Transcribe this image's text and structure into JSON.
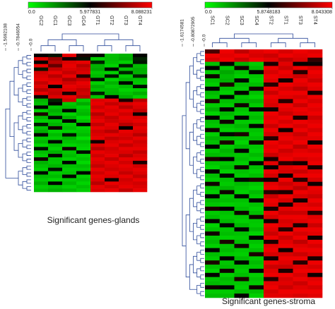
{
  "chart_data": [
    {
      "type": "heatmap",
      "title": "Significant genes-glands",
      "columns": [
        "GC2",
        "GC1",
        "GC3",
        "GC4",
        "GT1",
        "GT2",
        "GT3",
        "GT4"
      ],
      "clim": [
        0,
        8.088231
      ],
      "color_scale": {
        "colors": [
          "#00ff00",
          "#000000",
          "#ff0000"
        ],
        "ticks": [
          {
            "value": 0,
            "label": "0.0"
          },
          5.977831,
          8.088231
        ]
      },
      "dendrogram_ticks": [
        -1.5692108,
        -0.7846054,
        {
          "value": 0,
          "label": "-0.0"
        }
      ],
      "values": [
        [
          6.0,
          5.5,
          7.9,
          6.2,
          5.8,
          1.5,
          1.8,
          5.9
        ],
        [
          7.8,
          7.2,
          6.1,
          5.6,
          1.2,
          1.6,
          2.0,
          5.2
        ],
        [
          5.9,
          7.5,
          7.8,
          7.9,
          5.2,
          1.4,
          1.1,
          5.5
        ],
        [
          7.9,
          6.8,
          7.9,
          7.5,
          1.8,
          1.0,
          5.3,
          1.6
        ],
        [
          5.5,
          7.6,
          7.8,
          7.7,
          2.0,
          5.8,
          1.5,
          1.9
        ],
        [
          7.7,
          7.9,
          7.6,
          7.8,
          1.3,
          1.1,
          5.2,
          1.8
        ],
        [
          7.8,
          7.5,
          7.9,
          6.3,
          1.6,
          5.5,
          1.2,
          5.1
        ],
        [
          7.9,
          7.8,
          7.4,
          7.6,
          5.6,
          1.0,
          1.7,
          1.4
        ],
        [
          7.6,
          7.9,
          7.7,
          7.9,
          1.1,
          1.8,
          5.9,
          1.3
        ],
        [
          7.8,
          6.0,
          7.9,
          7.8,
          1.9,
          1.3,
          1.6,
          5.7
        ],
        [
          7.5,
          7.7,
          7.8,
          7.6,
          1.5,
          1.6,
          1.0,
          1.2
        ],
        [
          7.9,
          7.6,
          6.2,
          7.7,
          5.3,
          1.7,
          1.4,
          1.9
        ],
        [
          6.1,
          7.8,
          7.9,
          7.5,
          1.4,
          6.0,
          1.9,
          1.1
        ],
        [
          1.8,
          5.2,
          7.7,
          1.2,
          7.8,
          7.9,
          6.2,
          7.5
        ],
        [
          1.5,
          6.0,
          1.3,
          2.0,
          7.9,
          7.6,
          7.8,
          7.9
        ],
        [
          5.9,
          1.4,
          1.6,
          1.1,
          7.7,
          7.9,
          7.5,
          7.8
        ],
        [
          1.2,
          1.9,
          5.8,
          1.5,
          7.9,
          7.8,
          7.9,
          7.6
        ],
        [
          6.2,
          1.5,
          1.0,
          1.7,
          7.5,
          7.9,
          7.7,
          6.1
        ],
        [
          1.6,
          5.6,
          1.8,
          0.9,
          7.8,
          7.6,
          7.9,
          7.8
        ],
        [
          1.1,
          1.3,
          6.0,
          1.4,
          7.9,
          7.7,
          7.8,
          7.9
        ],
        [
          5.3,
          1.7,
          1.2,
          5.9,
          7.6,
          7.9,
          7.5,
          7.7
        ],
        [
          1.4,
          6.1,
          1.5,
          1.0,
          7.9,
          7.8,
          6.0,
          7.9
        ],
        [
          1.9,
          1.0,
          1.1,
          1.3,
          7.7,
          7.5,
          7.9,
          7.8
        ],
        [
          6.0,
          1.6,
          5.5,
          1.6,
          7.8,
          7.9,
          7.8,
          7.5
        ],
        [
          1.3,
          1.2,
          1.7,
          0.8,
          7.9,
          7.6,
          7.7,
          7.9
        ],
        [
          1.7,
          5.8,
          1.4,
          1.5,
          6.1,
          7.8,
          7.9,
          7.7
        ],
        [
          1.0,
          1.5,
          1.0,
          1.2,
          7.8,
          7.9,
          7.6,
          7.8
        ],
        [
          5.6,
          1.1,
          6.1,
          1.0,
          7.5,
          7.7,
          7.9,
          7.9
        ],
        [
          1.5,
          1.8,
          1.3,
          5.7,
          7.9,
          7.8,
          7.8,
          7.6
        ],
        [
          1.2,
          6.0,
          1.6,
          1.1,
          7.7,
          7.9,
          7.5,
          7.8
        ],
        [
          6.1,
          1.4,
          1.1,
          1.4,
          7.9,
          7.6,
          7.9,
          7.9
        ],
        [
          1.8,
          1.3,
          5.9,
          0.9,
          7.8,
          7.9,
          7.7,
          6.2
        ],
        [
          1.4,
          1.7,
          1.5,
          1.6,
          7.6,
          7.8,
          7.9,
          7.7
        ],
        [
          1.1,
          5.5,
          1.2,
          1.3,
          7.9,
          7.7,
          7.8,
          7.9
        ],
        [
          5.8,
          1.2,
          1.4,
          5.9,
          7.7,
          7.9,
          7.6,
          7.8
        ],
        [
          1.6,
          1.6,
          6.0,
          1.1,
          7.9,
          7.8,
          7.9,
          7.6
        ],
        [
          1.3,
          1.0,
          1.3,
          1.4,
          7.8,
          6.1,
          7.7,
          7.9
        ],
        [
          1.9,
          5.9,
          1.7,
          1.0,
          7.5,
          7.9,
          7.8,
          7.7
        ],
        [
          1.2,
          1.4,
          1.1,
          1.5,
          7.9,
          7.7,
          7.9,
          7.8
        ],
        [
          1.5,
          1.8,
          1.6,
          1.2,
          7.8,
          7.9,
          7.6,
          7.9
        ]
      ]
    },
    {
      "type": "heatmap",
      "title": "Significant genes-stroma",
      "columns": [
        "SC1",
        "SC2",
        "SC3",
        "SC4",
        "ST2",
        "ST1",
        "ST3",
        "ST4"
      ],
      "clim": [
        0,
        8.043308
      ],
      "color_scale": {
        "colors": [
          "#00ff00",
          "#000000",
          "#ff0000"
        ],
        "ticks": [
          {
            "value": 0,
            "label": "0.0"
          },
          5.8748183,
          8.043308
        ]
      },
      "dendrogram_ticks": [
        -1.6174581,
        -0.80872905,
        {
          "value": 0,
          "label": "-0.0"
        }
      ],
      "values": [
        [
          6.5,
          7.9,
          7.5,
          7.8,
          7.9,
          7.7,
          7.9,
          7.8
        ],
        [
          7.9,
          7.8,
          7.9,
          7.7,
          7.6,
          7.9,
          7.8,
          7.9
        ],
        [
          7.7,
          7.9,
          7.6,
          7.9,
          7.8,
          7.5,
          7.7,
          6.3
        ],
        [
          1.5,
          5.9,
          1.8,
          1.2,
          6.1,
          7.8,
          5.8,
          6.0
        ],
        [
          5.8,
          1.3,
          6.0,
          1.6,
          7.9,
          7.6,
          7.9,
          7.7
        ],
        [
          1.2,
          2.0,
          1.4,
          5.9,
          7.7,
          7.9,
          6.2,
          7.9
        ],
        [
          6.0,
          1.6,
          1.1,
          1.3,
          7.9,
          7.8,
          7.6,
          7.8
        ],
        [
          1.4,
          1.8,
          5.7,
          1.1,
          7.8,
          6.0,
          7.9,
          7.6
        ],
        [
          1.1,
          6.1,
          1.5,
          1.5,
          6.2,
          7.9,
          7.8,
          7.9
        ],
        [
          5.7,
          1.4,
          1.2,
          6.0,
          7.9,
          7.7,
          7.5,
          7.8
        ],
        [
          1.6,
          1.1,
          5.9,
          1.4,
          7.6,
          7.9,
          7.9,
          6.1
        ],
        [
          1.3,
          5.8,
          1.3,
          1.0,
          7.9,
          7.8,
          7.7,
          7.9
        ],
        [
          6.1,
          1.5,
          1.6,
          1.7,
          7.8,
          6.2,
          7.9,
          7.7
        ],
        [
          1.2,
          1.2,
          6.0,
          1.2,
          7.7,
          7.9,
          7.6,
          7.9
        ],
        [
          1.8,
          5.9,
          1.4,
          5.8,
          6.0,
          7.8,
          7.9,
          7.8
        ],
        [
          1.0,
          1.6,
          1.1,
          1.3,
          7.9,
          7.6,
          7.8,
          7.9
        ],
        [
          5.9,
          1.3,
          5.8,
          1.6,
          7.8,
          7.9,
          6.1,
          7.6
        ],
        [
          1.5,
          6.0,
          1.2,
          1.1,
          7.9,
          7.7,
          7.9,
          7.8
        ],
        [
          1.3,
          1.4,
          1.7,
          5.9,
          7.6,
          7.9,
          7.7,
          7.9
        ],
        [
          6.0,
          1.1,
          1.3,
          1.4,
          7.9,
          6.0,
          7.9,
          7.7
        ],
        [
          1.1,
          5.7,
          6.1,
          1.2,
          7.7,
          7.8,
          7.6,
          7.9
        ],
        [
          1.7,
          1.5,
          1.4,
          1.5,
          6.2,
          7.9,
          7.8,
          7.8
        ],
        [
          1.4,
          6.1,
          1.0,
          6.0,
          7.9,
          7.7,
          7.9,
          6.0
        ],
        [
          5.8,
          1.2,
          1.6,
          1.3,
          7.8,
          7.9,
          7.5,
          7.9
        ],
        [
          1.2,
          1.7,
          5.9,
          1.1,
          7.9,
          7.6,
          7.8,
          7.7
        ],
        [
          1.6,
          1.4,
          1.3,
          1.6,
          7.6,
          7.8,
          7.9,
          7.9
        ],
        [
          6.1,
          5.9,
          1.5,
          1.2,
          6.1,
          7.9,
          7.7,
          7.8
        ],
        [
          1.3,
          1.3,
          1.1,
          5.8,
          7.8,
          6.2,
          6.0,
          7.9
        ],
        [
          1.0,
          1.6,
          6.0,
          1.4,
          5.9,
          7.8,
          7.9,
          6.1
        ],
        [
          5.9,
          1.1,
          1.4,
          1.1,
          7.9,
          7.7,
          7.6,
          7.8
        ],
        [
          1.5,
          5.8,
          1.2,
          1.5,
          7.7,
          5.9,
          7.9,
          7.9
        ],
        [
          1.2,
          1.4,
          5.7,
          6.1,
          6.0,
          7.9,
          6.2,
          7.7
        ],
        [
          6.0,
          1.2,
          1.6,
          1.3,
          7.8,
          7.6,
          7.8,
          6.0
        ],
        [
          1.4,
          1.7,
          1.3,
          1.0,
          7.9,
          7.8,
          7.5,
          7.9
        ],
        [
          1.1,
          6.0,
          1.1,
          1.6,
          6.2,
          6.1,
          7.9,
          7.8
        ],
        [
          5.8,
          1.3,
          5.9,
          1.2,
          7.6,
          7.9,
          7.7,
          7.6
        ],
        [
          1.6,
          1.5,
          1.4,
          5.9,
          7.9,
          7.7,
          6.0,
          7.9
        ],
        [
          1.3,
          1.1,
          1.2,
          1.4,
          7.8,
          6.0,
          7.8,
          7.7
        ],
        [
          6.1,
          5.9,
          1.5,
          1.1,
          6.1,
          7.8,
          7.9,
          7.9
        ],
        [
          1.2,
          1.4,
          6.0,
          1.5,
          7.9,
          7.6,
          7.6,
          6.2
        ],
        [
          1.5,
          1.2,
          1.3,
          6.0,
          7.7,
          7.9,
          7.9,
          7.8
        ],
        [
          5.9,
          1.6,
          1.1,
          1.3,
          6.0,
          7.7,
          7.8,
          7.9
        ],
        [
          1.0,
          5.8,
          1.6,
          1.2,
          7.9,
          7.8,
          6.1,
          7.6
        ],
        [
          1.4,
          1.3,
          5.8,
          1.6,
          7.8,
          6.2,
          7.9,
          7.9
        ],
        [
          6.0,
          1.5,
          1.4,
          1.0,
          7.6,
          7.9,
          7.7,
          7.8
        ],
        [
          1.3,
          1.1,
          1.2,
          5.9,
          7.9,
          7.6,
          7.9,
          6.0
        ],
        [
          1.6,
          6.1,
          1.5,
          1.4,
          6.1,
          7.8,
          7.5,
          7.9
        ],
        [
          1.1,
          1.4,
          6.0,
          1.1,
          7.8,
          7.9,
          7.8,
          7.7
        ],
        [
          5.8,
          1.6,
          1.3,
          1.5,
          7.9,
          6.0,
          7.9,
          7.9
        ],
        [
          1.5,
          1.2,
          1.1,
          6.1,
          7.7,
          7.7,
          7.6,
          7.8
        ],
        [
          1.2,
          5.9,
          1.6,
          1.2,
          6.0,
          7.9,
          7.9,
          6.1
        ],
        [
          6.1,
          1.3,
          5.8,
          1.6,
          7.9,
          7.8,
          6.2,
          7.9
        ],
        [
          1.4,
          1.5,
          1.4,
          1.3,
          7.6,
          7.6,
          7.8,
          7.7
        ],
        [
          1.0,
          6.0,
          1.2,
          5.8,
          7.8,
          6.1,
          7.9,
          7.9
        ],
        [
          5.9,
          1.1,
          1.5,
          1.1,
          7.9,
          7.9,
          7.7,
          6.0
        ],
        [
          1.3,
          1.6,
          6.1,
          1.4,
          6.2,
          7.7,
          7.9,
          7.8
        ],
        [
          1.6,
          1.4,
          1.3,
          1.2,
          7.8,
          7.8,
          7.6,
          7.9
        ],
        [
          6.0,
          5.8,
          1.1,
          6.0,
          7.9,
          7.6,
          7.8,
          7.7
        ],
        [
          1.2,
          1.2,
          1.6,
          1.5,
          7.7,
          7.9,
          7.9,
          7.9
        ],
        [
          1.5,
          1.5,
          5.9,
          1.1,
          7.8,
          7.8,
          7.7,
          7.8
        ]
      ]
    }
  ]
}
